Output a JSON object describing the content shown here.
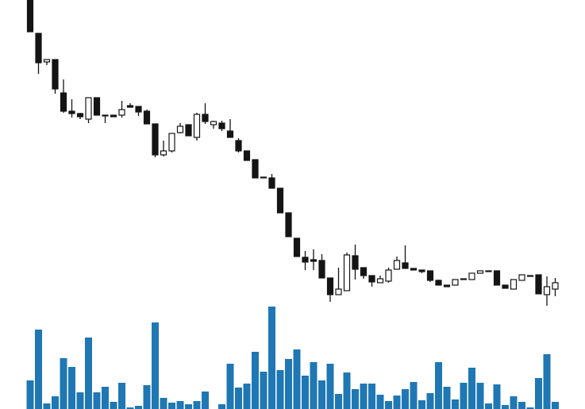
{
  "chart_data": {
    "type": "candlestick",
    "open": [
      400,
      358,
      322,
      325,
      283,
      260,
      257,
      250,
      277,
      255,
      255,
      255,
      267,
      266,
      260,
      244,
      205,
      210,
      233,
      243,
      227,
      256,
      243,
      245,
      235,
      223,
      210,
      199,
      177,
      176,
      163,
      132,
      100,
      76,
      73,
      72,
      50,
      29,
      34,
      78,
      63,
      53,
      44,
      46,
      61,
      69,
      62,
      60,
      59,
      47,
      41,
      41,
      48,
      48,
      56,
      59,
      59,
      41,
      36,
      47,
      53,
      54,
      29,
      36
    ],
    "high": [
      400,
      358,
      325,
      325,
      300,
      275,
      258,
      277,
      277,
      255,
      255,
      273,
      270,
      266,
      262,
      244,
      223,
      232,
      245,
      243,
      258,
      270,
      248,
      248,
      250,
      226,
      210,
      199,
      177,
      181,
      163,
      132,
      100,
      84,
      86,
      80,
      50,
      63,
      82,
      92,
      63,
      53,
      53,
      63,
      77,
      91,
      62,
      60,
      59,
      48,
      41,
      48,
      49,
      56,
      59,
      59,
      59,
      41,
      48,
      54,
      53,
      54,
      52,
      50
    ],
    "low": [
      360,
      307,
      318,
      282,
      258,
      252,
      250,
      245,
      255,
      245,
      253,
      252,
      265,
      254,
      244,
      202,
      203,
      208,
      232,
      229,
      223,
      244,
      238,
      235,
      227,
      208,
      198,
      176,
      176,
      163,
      132,
      102,
      77,
      60,
      60,
      50,
      20,
      29,
      34,
      48,
      49,
      39,
      44,
      44,
      61,
      62,
      60,
      56,
      45,
      41,
      39,
      41,
      48,
      48,
      56,
      58,
      41,
      37,
      36,
      47,
      52,
      30,
      15,
      27
    ],
    "close": [
      360,
      321,
      325,
      288,
      260,
      257,
      253,
      277,
      255,
      254,
      253,
      262,
      265,
      259,
      244,
      205,
      210,
      232,
      241,
      229,
      256,
      247,
      247,
      238,
      227,
      210,
      198,
      176,
      176,
      163,
      132,
      102,
      77,
      70,
      71,
      50,
      29,
      36,
      79,
      61,
      53,
      45,
      49,
      60,
      72,
      62,
      60,
      58,
      47,
      41,
      39,
      48,
      49,
      56,
      59,
      58,
      41,
      37,
      48,
      54,
      52,
      30,
      39,
      44
    ],
    "ylim": [
      0,
      400
    ],
    "volume": [
      36,
      100,
      7,
      16,
      64,
      53,
      21,
      90,
      21,
      28,
      9,
      33,
      2,
      4,
      30,
      109,
      14,
      8,
      10,
      6,
      10,
      22,
      0,
      6,
      57,
      27,
      32,
      72,
      47,
      129,
      49,
      63,
      75,
      42,
      59,
      36,
      57,
      19,
      46,
      25,
      32,
      32,
      18,
      10,
      17,
      25,
      34,
      11,
      20,
      59,
      28,
      12,
      33,
      52,
      33,
      7,
      31,
      5,
      16,
      9,
      2,
      39,
      69,
      9
    ],
    "volume_ylim": [
      0,
      130
    ],
    "up_color": "#ffffff",
    "down_color": "#141414",
    "volume_color": "#1f77b4"
  }
}
